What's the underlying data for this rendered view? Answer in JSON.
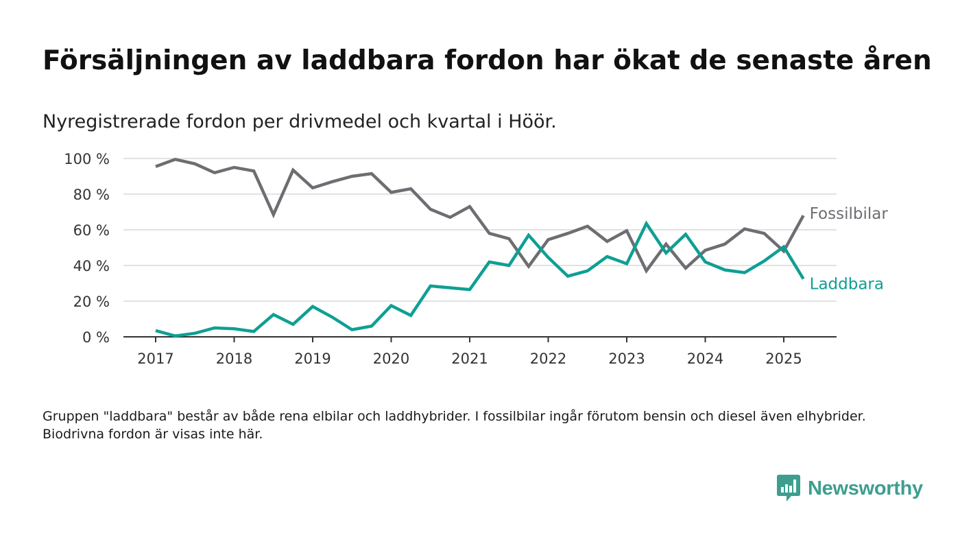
{
  "header": {
    "title": "Försäljningen av laddbara fordon har ökat de senaste åren",
    "subtitle": "Nyregistrerade fordon per drivmedel och kvartal i Höör."
  },
  "footnote": "Gruppen \"laddbara\" består av både rena elbilar och laddhybrider. I fossilbilar ingår förutom bensin och diesel även elhybrider. Biodrivna fordon är visas inte här.",
  "brand": {
    "name": "Newsworthy",
    "icon": "newsworthy-logo-icon",
    "color": "#3d9e8f"
  },
  "chart_data": {
    "type": "line",
    "ylim": [
      0,
      100
    ],
    "yticks": [
      0,
      20,
      40,
      60,
      80,
      100
    ],
    "ytick_labels": [
      "0 %",
      "20 %",
      "40 %",
      "60 %",
      "80 %",
      "100 %"
    ],
    "xlim": [
      2017,
      2025.5
    ],
    "xticks": [
      2017,
      2018,
      2019,
      2020,
      2021,
      2022,
      2023,
      2024,
      2025
    ],
    "xtick_labels": [
      "2017",
      "2018",
      "2019",
      "2020",
      "2021",
      "2022",
      "2023",
      "2024",
      "2025"
    ],
    "grid": true,
    "legend": "end-of-line labels",
    "x": [
      2017,
      2017.25,
      2017.5,
      2017.75,
      2018,
      2018.25,
      2018.5,
      2018.75,
      2019,
      2019.25,
      2019.5,
      2019.75,
      2020,
      2020.25,
      2020.5,
      2020.75,
      2021,
      2021.25,
      2021.5,
      2021.75,
      2022,
      2022.25,
      2022.5,
      2022.75,
      2023,
      2023.25,
      2023.5,
      2023.75,
      2024,
      2024.25,
      2024.5,
      2024.75,
      2025,
      2025.25
    ],
    "series": [
      {
        "name": "Fossilbilar",
        "color": "#6e6d72",
        "values": [
          95.5,
          99.5,
          97,
          92,
          95,
          93,
          68.5,
          93.5,
          83.5,
          87,
          90,
          91.5,
          81,
          83,
          71.5,
          67,
          73,
          58,
          55,
          39.5,
          54.5,
          58,
          62,
          53.5,
          59.5,
          37,
          52,
          38.5,
          48.5,
          52,
          60.5,
          58,
          48,
          68
        ]
      },
      {
        "name": "Laddbara",
        "color": "#0f9f93",
        "values": [
          3.5,
          0.5,
          2,
          5,
          4.5,
          3,
          12.5,
          7,
          17,
          11,
          4,
          6,
          17.5,
          12,
          28.5,
          27.5,
          26.5,
          42,
          40,
          57,
          44.5,
          34,
          37,
          45,
          41,
          63.5,
          47,
          57.5,
          42,
          37.5,
          36,
          42.5,
          50.5,
          32.5
        ]
      }
    ]
  }
}
